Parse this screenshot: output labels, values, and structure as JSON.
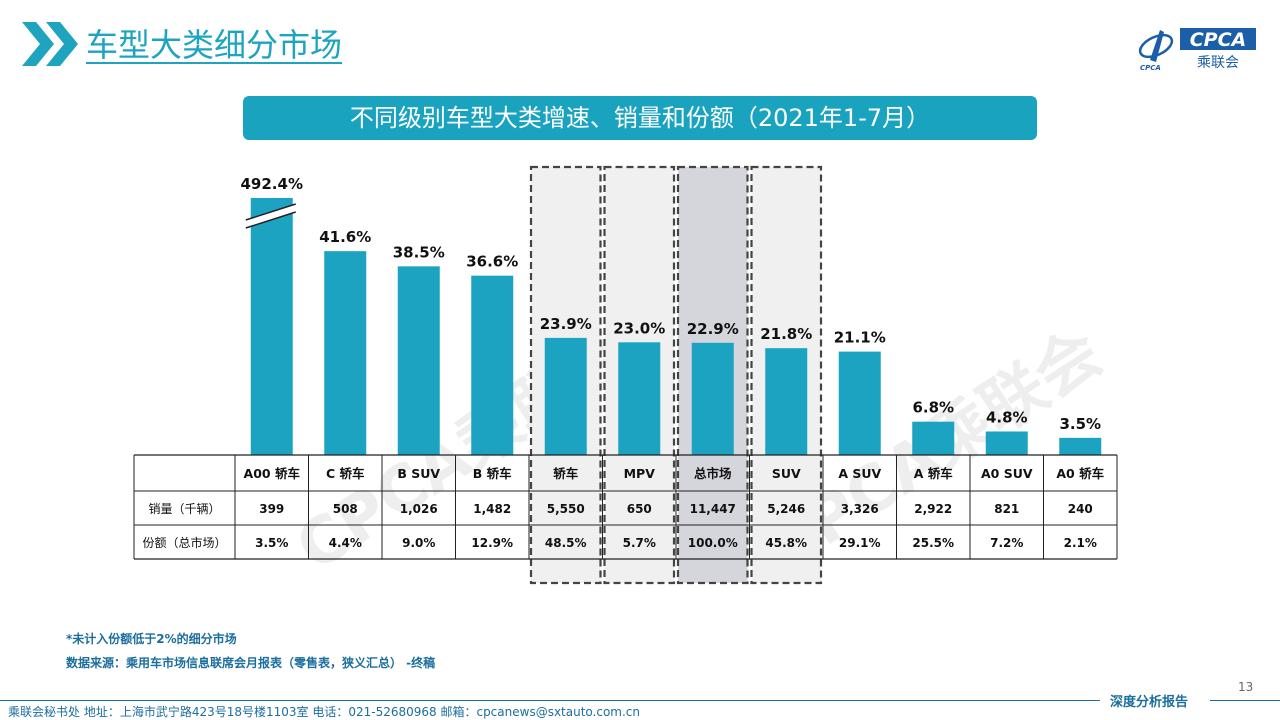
{
  "header": {
    "title": "车型大类细分市场",
    "logo_text": "CPCA",
    "logo_subtitle": "乘联会",
    "logo_mark": "CPCA"
  },
  "banner": {
    "text": "不同级别车型大类增速、销量和份额（2021年1-7月）"
  },
  "watermark": {
    "text": "CPCA乘联会"
  },
  "chart_data": {
    "type": "bar",
    "categories": [
      "A00 轿车",
      "C 轿车",
      "B SUV",
      "B 轿车",
      "轿车",
      "MPV",
      "总市场",
      "SUV",
      "A SUV",
      "A 轿车",
      "A0 SUV",
      "A0 轿车"
    ],
    "values": [
      492.4,
      41.6,
      38.5,
      36.6,
      23.9,
      23.0,
      22.9,
      21.8,
      21.1,
      6.8,
      4.8,
      3.5
    ],
    "value_labels": [
      "492.4%",
      "41.6%",
      "38.5%",
      "36.6%",
      "23.9%",
      "23.0%",
      "22.9%",
      "21.8%",
      "21.1%",
      "6.8%",
      "4.8%",
      "3.5%"
    ],
    "axis_break_index": 0,
    "highlighted": [
      "轿车",
      "MPV",
      "总市场",
      "SUV"
    ],
    "total_index": 6,
    "bar_color": "#1ba3c1",
    "table": {
      "row_labels": [
        "销量（千辆）",
        "份额（总市场）"
      ],
      "rows": [
        [
          "399",
          "508",
          "1,026",
          "1,482",
          "5,550",
          "650",
          "11,447",
          "5,246",
          "3,326",
          "2,922",
          "821",
          "240"
        ],
        [
          "3.5%",
          "4.4%",
          "9.0%",
          "12.9%",
          "48.5%",
          "5.7%",
          "100.0%",
          "45.8%",
          "29.1%",
          "25.5%",
          "7.2%",
          "2.1%"
        ]
      ]
    }
  },
  "footnotes": [
    "*未计入份额低于2%的细分市场",
    "数据来源：乘用车市场信息联席会月报表（零售表，狭义汇总） -终稿"
  ],
  "footer": {
    "page_number": "13",
    "address": "乘联会秘书处   地址：上海市武宁路423号18号楼1103室  电话：021-52680968   邮箱：cpcanews@sxtauto.com.cn",
    "report_label": "深度分析报告"
  }
}
